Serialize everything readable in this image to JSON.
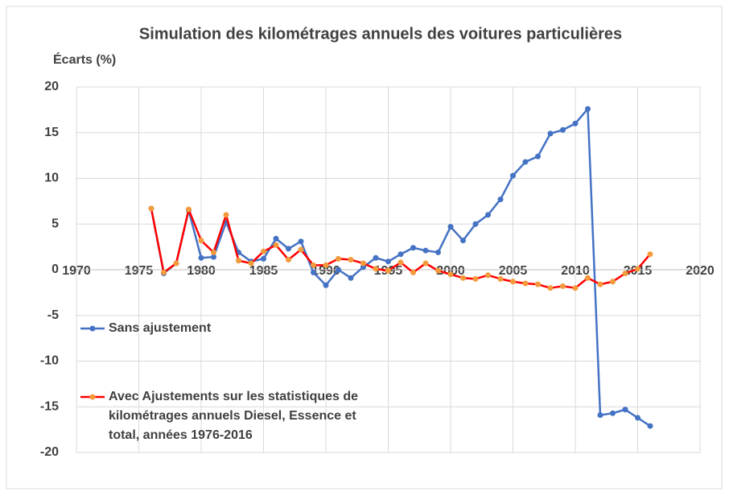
{
  "chart_data": {
    "type": "line",
    "title": "Simulation des kilométrages annuels des voitures particulières",
    "y_label": "Écarts (%)",
    "x": [
      1976,
      1977,
      1978,
      1979,
      1980,
      1981,
      1982,
      1983,
      1984,
      1985,
      1986,
      1987,
      1988,
      1989,
      1990,
      1991,
      1992,
      1993,
      1994,
      1995,
      1996,
      1997,
      1998,
      1999,
      2000,
      2001,
      2002,
      2003,
      2004,
      2005,
      2006,
      2007,
      2008,
      2009,
      2010,
      2011,
      2012,
      2013,
      2014,
      2015,
      2016
    ],
    "series": [
      {
        "name": "Sans ajustement",
        "color": "#4472c4",
        "marker_color": "#4472c4",
        "values": [
          6.7,
          -0.4,
          0.7,
          6.5,
          1.3,
          1.4,
          5.2,
          1.9,
          0.9,
          1.2,
          3.4,
          2.3,
          3.1,
          -0.3,
          -1.7,
          0.0,
          -0.9,
          0.3,
          1.3,
          0.9,
          1.7,
          2.4,
          2.1,
          1.9,
          4.7,
          3.2,
          5.0,
          6.0,
          7.7,
          10.3,
          11.8,
          12.4,
          14.9,
          15.3,
          16.0,
          17.6,
          -15.9,
          -15.7,
          -15.3,
          -16.2,
          -17.1
        ]
      },
      {
        "name": "Avec Ajustements sur les statistiques de kilométrages annuels Diesel, Essence et total, années 1976-2016",
        "color": "#ff0000",
        "marker_color": "#f39a3c",
        "values": [
          6.7,
          -0.3,
          0.7,
          6.6,
          3.2,
          1.9,
          6.0,
          1.0,
          0.7,
          2.0,
          2.7,
          1.1,
          2.2,
          0.5,
          0.5,
          1.2,
          1.1,
          0.7,
          0.1,
          -0.1,
          0.8,
          -0.3,
          0.7,
          -0.1,
          -0.5,
          -0.9,
          -1.0,
          -0.6,
          -1.0,
          -1.3,
          -1.5,
          -1.6,
          -2.0,
          -1.8,
          -2.0,
          -0.9,
          -1.6,
          -1.3,
          -0.4,
          0.1,
          1.7
        ]
      }
    ],
    "xlim": [
      1970,
      2020
    ],
    "xticks": [
      1970,
      1975,
      1980,
      1985,
      1990,
      1995,
      2000,
      2005,
      2010,
      2015,
      2020
    ],
    "ylim": [
      -20,
      20
    ],
    "yticks": [
      -20,
      -15,
      -10,
      -5,
      0,
      5,
      10,
      15,
      20
    ],
    "grid": true
  }
}
